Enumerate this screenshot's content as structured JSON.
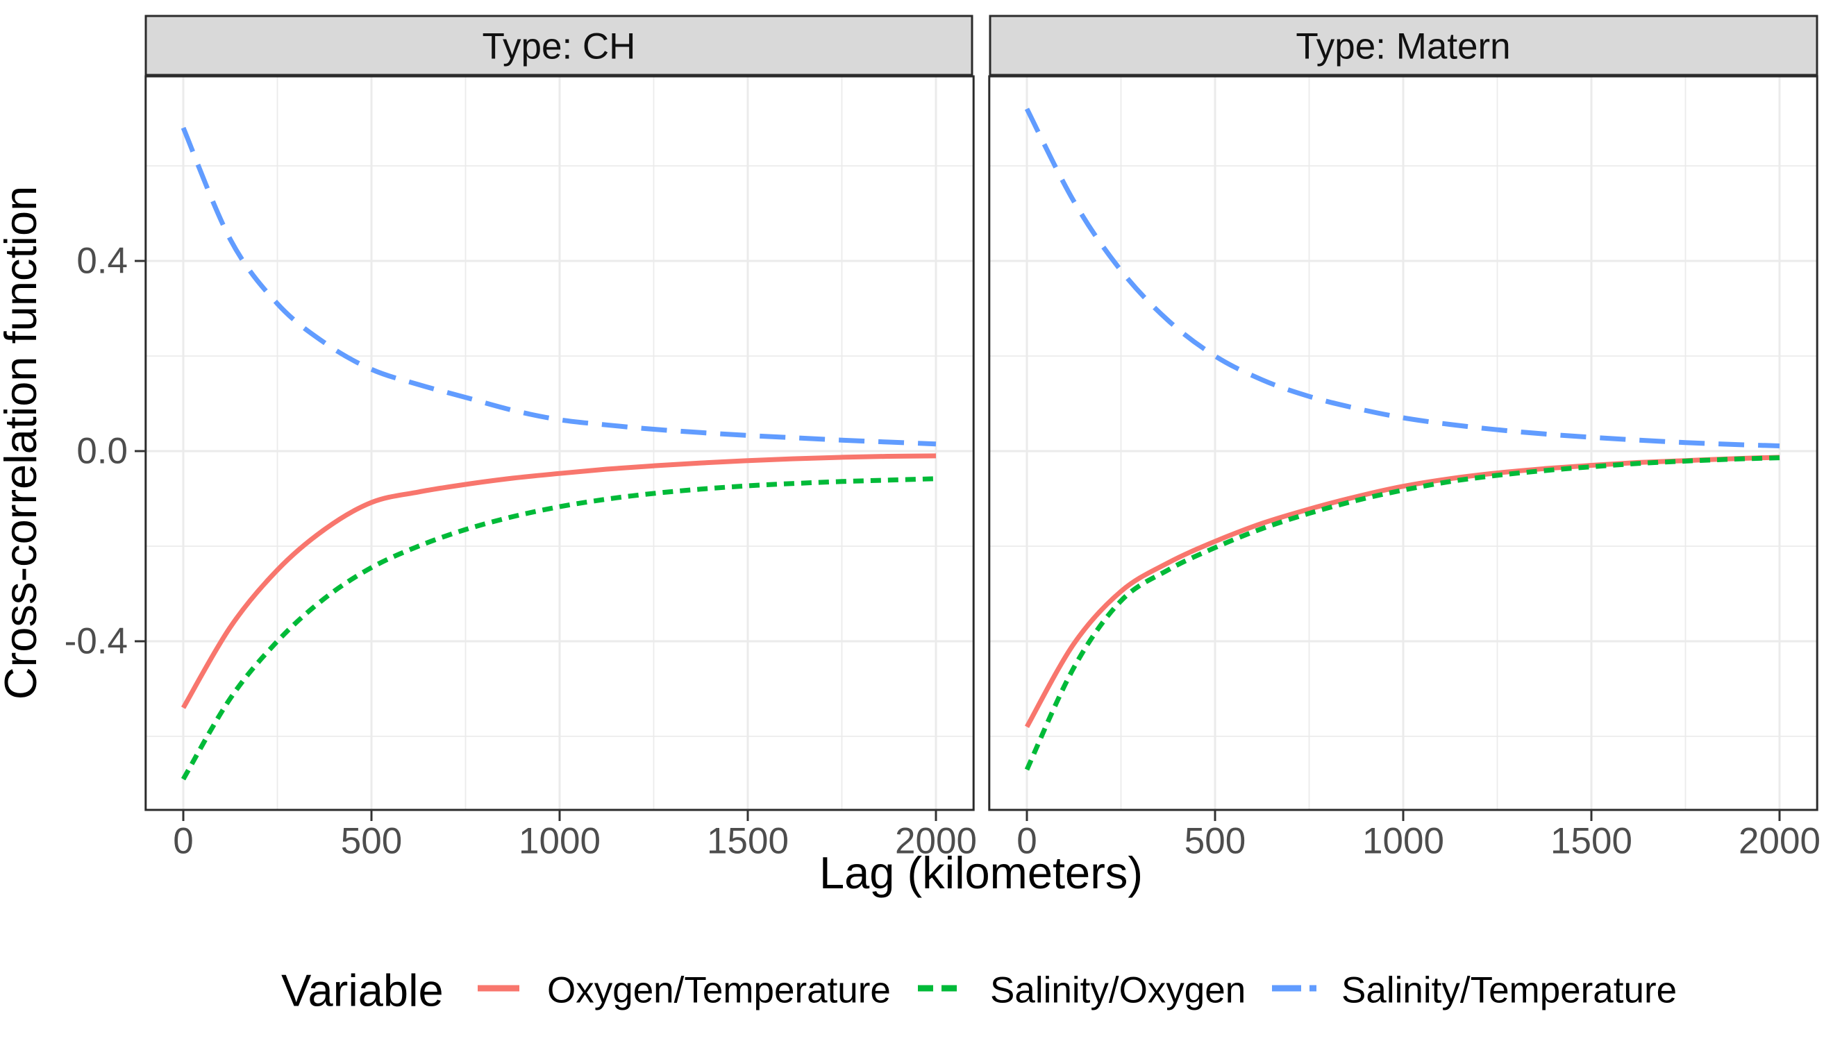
{
  "chart_data": {
    "type": "line",
    "xlabel": "Lag (kilometers)",
    "ylabel": "Cross-correlation function",
    "x_ticks": [
      0,
      500,
      1000,
      1500,
      2000
    ],
    "x_minor_ticks": [
      250,
      750,
      1250,
      1750
    ],
    "y_ticks": [
      0.4,
      0.0,
      -0.4
    ],
    "y_tick_labels": [
      "0.4",
      "0.0",
      "-0.4"
    ],
    "y_minor_ticks": [
      0.6,
      0.2,
      -0.2,
      -0.6
    ],
    "xlim": [
      -100,
      2100
    ],
    "ylim": [
      -0.755,
      0.788
    ],
    "grid": true,
    "legend": {
      "title": "Variable",
      "position": "bottom"
    },
    "series_meta": [
      {
        "name": "Oxygen/Temperature",
        "color": "#F8766D",
        "linetype": "solid"
      },
      {
        "name": "Salinity/Oxygen",
        "color": "#00BA38",
        "linetype": "dashed"
      },
      {
        "name": "Salinity/Temperature",
        "color": "#619CFF",
        "linetype": "longdash"
      }
    ],
    "x": [
      0,
      125,
      250,
      375,
      500,
      625,
      750,
      875,
      1000,
      1125,
      1250,
      1375,
      1500,
      1625,
      1750,
      1875,
      2000
    ],
    "facets": [
      {
        "label": "Type: CH",
        "series": [
          {
            "name": "Oxygen/Temperature",
            "values": [
              -0.54,
              -0.37,
              -0.25,
              -0.165,
              -0.108,
              -0.086,
              -0.07,
              -0.057,
              -0.047,
              -0.038,
              -0.031,
              -0.025,
              -0.02,
              -0.016,
              -0.013,
              -0.011,
              -0.01
            ]
          },
          {
            "name": "Salinity/Oxygen",
            "values": [
              -0.69,
              -0.52,
              -0.4,
              -0.31,
              -0.245,
              -0.2,
              -0.165,
              -0.138,
              -0.117,
              -0.101,
              -0.089,
              -0.08,
              -0.073,
              -0.068,
              -0.064,
              -0.061,
              -0.058
            ]
          },
          {
            "name": "Salinity/Temperature",
            "values": [
              0.68,
              0.445,
              0.31,
              0.228,
              0.172,
              0.14,
              0.113,
              0.086,
              0.066,
              0.055,
              0.046,
              0.039,
              0.033,
              0.028,
              0.023,
              0.019,
              0.015
            ]
          }
        ]
      },
      {
        "label": "Type: Matern",
        "series": [
          {
            "name": "Oxygen/Temperature",
            "values": [
              -0.58,
              -0.405,
              -0.295,
              -0.235,
              -0.19,
              -0.152,
              -0.122,
              -0.096,
              -0.074,
              -0.058,
              -0.046,
              -0.037,
              -0.03,
              -0.024,
              -0.02,
              -0.016,
              -0.013
            ]
          },
          {
            "name": "Salinity/Oxygen",
            "values": [
              -0.67,
              -0.455,
              -0.315,
              -0.25,
              -0.203,
              -0.163,
              -0.131,
              -0.104,
              -0.082,
              -0.064,
              -0.051,
              -0.041,
              -0.033,
              -0.026,
              -0.021,
              -0.017,
              -0.014
            ]
          },
          {
            "name": "Salinity/Temperature",
            "values": [
              0.72,
              0.525,
              0.38,
              0.275,
              0.2,
              0.15,
              0.115,
              0.09,
              0.07,
              0.056,
              0.045,
              0.036,
              0.029,
              0.023,
              0.018,
              0.014,
              0.011
            ]
          }
        ]
      }
    ],
    "style": {
      "strip_fill": "#D9D9D9",
      "panel_border": "#2b2b2b",
      "grid_color": "#EBEBEB",
      "tick_text_color": "#4D4D4D",
      "background": "#FFFFFF"
    }
  }
}
